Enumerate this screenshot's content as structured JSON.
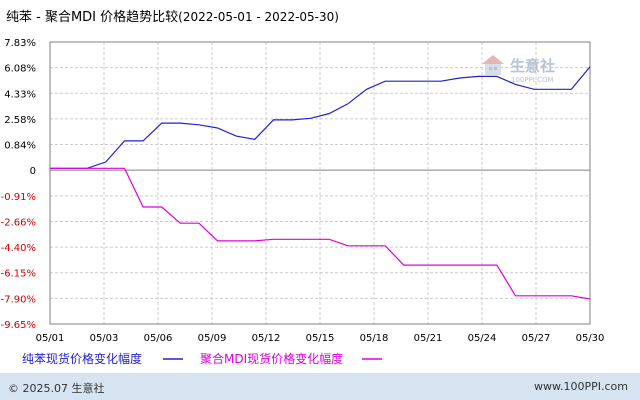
{
  "header": {
    "title": "纯苯 - 聚合MDI 价格趋势比较",
    "date_range": "(2022-05-01 - 2022-05-30)"
  },
  "watermark": {
    "name": "生意社",
    "url": "100PPI.COM"
  },
  "footer": {
    "copyright": "© 2025.07 生意社",
    "website": "www.100PPI.com"
  },
  "chart_data": {
    "type": "line",
    "x_ticks": [
      "05/01",
      "05/03",
      "05/06",
      "05/09",
      "05/12",
      "05/15",
      "05/18",
      "05/21",
      "05/24",
      "05/27",
      "05/30"
    ],
    "y_ticks": [
      "7.83%",
      "6.08%",
      "4.33%",
      "2.58%",
      "0.84%",
      "0",
      "-0.91%",
      "-2.66%",
      "-4.40%",
      "-6.15%",
      "-7.90%",
      "-9.65%"
    ],
    "ylim": [
      -9.65,
      7.83
    ],
    "xlim": [
      1,
      30
    ],
    "grid": true,
    "legend_position": "bottom",
    "series": [
      {
        "name": "纯苯现货价格变化幅度",
        "color": "#2222cc",
        "x": [
          1,
          3,
          4,
          5,
          6,
          7,
          8,
          9,
          10,
          11,
          12,
          13,
          14,
          15,
          16,
          17,
          18,
          19,
          20,
          21,
          22,
          23,
          24,
          25,
          26,
          27,
          28,
          29,
          30
        ],
        "values": [
          0.0,
          0.0,
          0.4,
          1.7,
          1.7,
          2.8,
          2.8,
          2.7,
          2.5,
          2.0,
          1.8,
          3.0,
          3.0,
          3.1,
          3.4,
          4.0,
          4.9,
          5.4,
          5.4,
          5.4,
          5.4,
          5.6,
          5.7,
          5.7,
          5.2,
          4.9,
          4.9,
          4.9,
          6.3
        ]
      },
      {
        "name": "聚合MDI现货价格变化幅度",
        "color": "#dd00dd",
        "x": [
          1,
          5,
          6,
          7,
          8,
          9,
          10,
          11,
          12,
          13,
          14,
          15,
          16,
          17,
          18,
          19,
          20,
          21,
          22,
          23,
          24,
          25,
          26,
          27,
          28,
          29,
          30
        ],
        "values": [
          0.0,
          0.0,
          -2.4,
          -2.4,
          -3.4,
          -3.4,
          -4.5,
          -4.5,
          -4.5,
          -4.4,
          -4.4,
          -4.4,
          -4.4,
          -4.8,
          -4.8,
          -4.8,
          -6.0,
          -6.0,
          -6.0,
          -6.0,
          -6.0,
          -6.0,
          -7.9,
          -7.9,
          -7.9,
          -7.9,
          -8.1
        ]
      }
    ]
  }
}
